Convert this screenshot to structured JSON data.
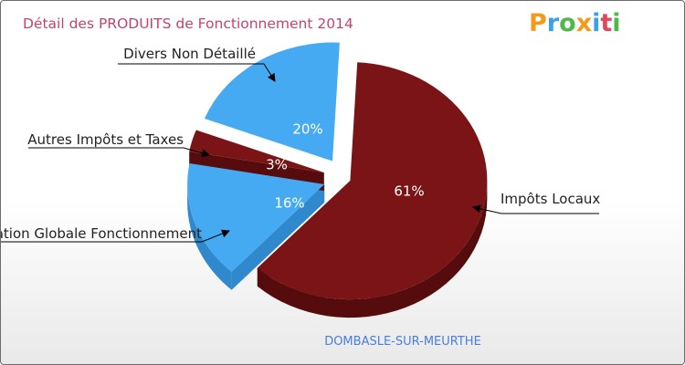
{
  "chart_data": {
    "type": "pie",
    "title": "Détail des PRODUITS de Fonctionnement 2014",
    "footer": "DOMBASLE-SUR-MEURTHE",
    "logo": "Proxiti",
    "slices": [
      {
        "label": "Impôts Locaux",
        "value": 61,
        "value_label": "61%",
        "color": "#7a1416",
        "side_color": "#560c0d",
        "label_color": "#ffffff"
      },
      {
        "label": "Dotation Globale Fonctionnement",
        "value": 16,
        "value_label": "16%",
        "color": "#45aaf2",
        "side_color": "#2f89cc",
        "label_color": "#ffffff"
      },
      {
        "label": "Autres Impôts et Taxes",
        "value": 3,
        "value_label": "3%",
        "color": "#7a1416",
        "side_color": "#560c0d",
        "label_color": "#ffffff"
      },
      {
        "label": "Divers Non Détaillé",
        "value": 20,
        "value_label": "20%",
        "color": "#45aaf2",
        "side_color": "#2f89cc",
        "label_color": "#ffffff"
      }
    ]
  }
}
